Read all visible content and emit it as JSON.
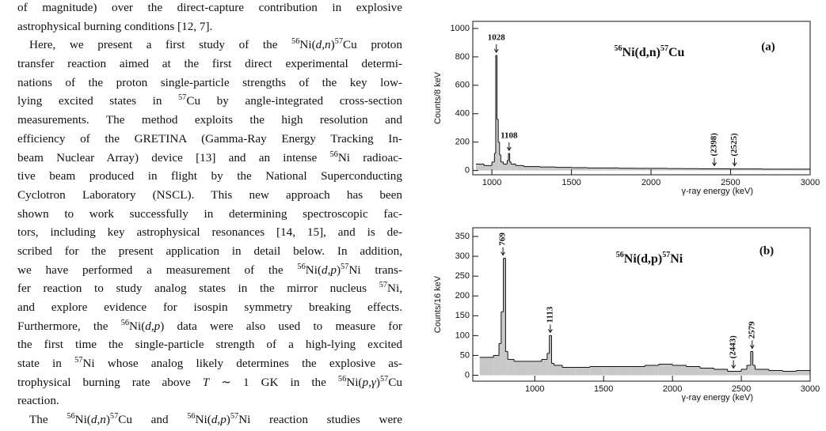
{
  "text": {
    "paragraphs": [
      [
        [
          "of magnitude) over the direct-capture contribution in explosive"
        ],
        [
          "astrophysical burning conditions [12, 7]."
        ]
      ],
      [
        [
          "Here, we present a first study of the ",
          {
            "sup": "56"
          },
          "Ni(",
          {
            "i": "d,n"
          },
          ")",
          {
            "sup": "57"
          },
          "Cu proton"
        ],
        [
          "transfer reaction aimed at the first direct experimental determi-"
        ],
        [
          "nations of the proton single-particle strengths of the key low-"
        ],
        [
          "lying excited states in ",
          {
            "sup": "57"
          },
          "Cu by angle-integrated cross-section"
        ],
        [
          "measurements.  The method exploits the high resolution and"
        ],
        [
          "efficiency of the GRETINA (Gamma-Ray Energy Tracking In-"
        ],
        [
          "beam Nuclear Array) device [13] and an intense ",
          {
            "sup": "56"
          },
          "Ni radioac-"
        ],
        [
          "tive beam produced in flight by the National Superconducting"
        ],
        [
          "Cyclotron Laboratory (NSCL). This new approach has been"
        ],
        [
          "shown to work successfully in determining spectroscopic fac-"
        ],
        [
          "tors, including key astrophysical resonances [14, 15], and is de-"
        ],
        [
          "scribed for the present application in detail below. In addition,"
        ],
        [
          "we have performed a measurement of the ",
          {
            "sup": "56"
          },
          "Ni(",
          {
            "i": "d,p"
          },
          ")",
          {
            "sup": "57"
          },
          "Ni trans-"
        ],
        [
          "fer reaction to study analog states in the mirror nucleus ",
          {
            "sup": "57"
          },
          "Ni,"
        ],
        [
          "and explore evidence for isospin symmetry breaking effects."
        ],
        [
          "Furthermore, the ",
          {
            "sup": "56"
          },
          "Ni(",
          {
            "i": "d,p"
          },
          ") data were also used to measure for"
        ],
        [
          "the first time the single-particle strength of a high-lying excited"
        ],
        [
          "state in ",
          {
            "sup": "57"
          },
          "Ni whose analog likely determines the explosive as-"
        ],
        [
          "trophysical burning rate above ",
          {
            "i": "T"
          },
          " ∼ 1 GK in the ",
          {
            "sup": "56"
          },
          "Ni(",
          {
            "i": "p,γ"
          },
          ")",
          {
            "sup": "57"
          },
          "Cu"
        ],
        [
          "reaction."
        ]
      ],
      [
        [
          "The ",
          {
            "sup": "56"
          },
          "Ni(",
          {
            "i": "d,n"
          },
          ")",
          {
            "sup": "57"
          },
          "Cu and ",
          {
            "sup": "56"
          },
          "Ni(",
          {
            "i": "d,p"
          },
          ")",
          {
            "sup": "57"
          },
          "Ni reaction studies were"
        ]
      ]
    ]
  },
  "chart_data": [
    {
      "type": "histogram",
      "title": [
        {
          "sup": "56"
        },
        "Ni(d,n)",
        {
          "sup": "57"
        },
        "Cu"
      ],
      "panel": "(a)",
      "x_label": "γ-ray energy (keV)",
      "y_label": "Counts/8 keV",
      "color": "#c8c8c8",
      "bins": [
        900,
        950,
        1000,
        1016,
        1024,
        1032,
        1040,
        1048,
        1056,
        1072,
        1096,
        1104,
        1112,
        1120,
        1150,
        1200,
        1300,
        1400,
        1500,
        1600,
        1700,
        1800,
        1900,
        2000,
        2100,
        2200,
        2300,
        2400,
        2500,
        2600,
        2700,
        2800,
        2900,
        3000
      ],
      "values": [
        45,
        35,
        60,
        120,
        810,
        360,
        200,
        110,
        60,
        45,
        70,
        120,
        60,
        45,
        35,
        28,
        25,
        22,
        20,
        18,
        18,
        16,
        15,
        15,
        14,
        13,
        12,
        12,
        11,
        11,
        10,
        10,
        10
      ],
      "xlim": [
        880,
        3000
      ],
      "ylim": [
        -30,
        1050
      ],
      "xticks": [
        1000,
        1500,
        2000,
        2500,
        3000
      ],
      "yticks": [
        0,
        200,
        400,
        600,
        800,
        1000
      ],
      "annotations": [
        {
          "text": "1028",
          "x": 1028,
          "vertical": false
        },
        {
          "text": "1108",
          "x": 1108,
          "vertical": false
        },
        {
          "text": "(2398)",
          "x": 2398,
          "vertical": true
        },
        {
          "text": "(2525)",
          "x": 2525,
          "vertical": true
        }
      ]
    },
    {
      "type": "histogram",
      "title": [
        {
          "sup": "56"
        },
        "Ni(d,p)",
        {
          "sup": "57"
        },
        "Ni"
      ],
      "panel": "(b)",
      "x_label": "γ-ray energy (keV)",
      "y_label": "Counts/16 keV",
      "color": "#c8c8c8",
      "bins": [
        600,
        700,
        740,
        756,
        772,
        788,
        804,
        850,
        950,
        1050,
        1090,
        1106,
        1122,
        1140,
        1200,
        1300,
        1400,
        1500,
        1600,
        1700,
        1800,
        1900,
        2000,
        2100,
        2200,
        2300,
        2400,
        2500,
        2540,
        2568,
        2584,
        2600,
        2700,
        2800,
        2900,
        3000
      ],
      "values": [
        45,
        50,
        80,
        160,
        295,
        60,
        40,
        35,
        35,
        40,
        55,
        100,
        30,
        25,
        20,
        20,
        22,
        22,
        22,
        22,
        25,
        28,
        25,
        22,
        18,
        15,
        10,
        15,
        25,
        60,
        25,
        15,
        12,
        10,
        12
      ],
      "xlim": [
        550,
        3000
      ],
      "ylim": [
        -15,
        372
      ],
      "xticks": [
        1000,
        1500,
        2000,
        2500,
        3000
      ],
      "yticks": [
        0,
        50,
        100,
        150,
        200,
        250,
        300,
        350
      ],
      "annotations": [
        {
          "text": "769",
          "x": 769,
          "vertical": true
        },
        {
          "text": "1113",
          "x": 1113,
          "vertical": true
        },
        {
          "text": "(2443)",
          "x": 2443,
          "vertical": true
        },
        {
          "text": "2579",
          "x": 2579,
          "vertical": true
        }
      ]
    }
  ]
}
